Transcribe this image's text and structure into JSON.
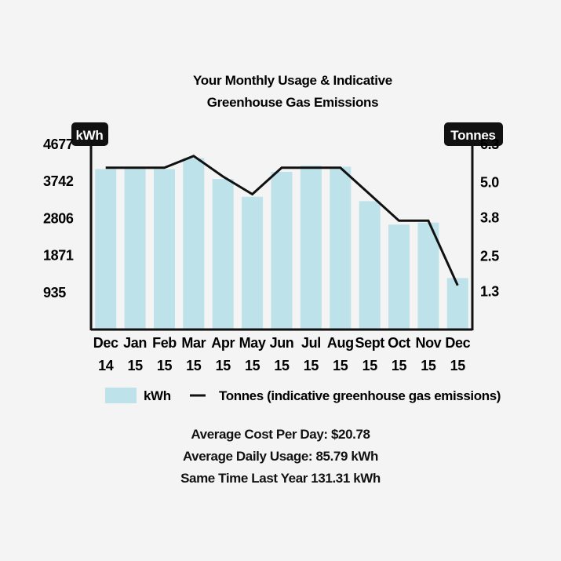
{
  "chart_data": {
    "type": "bar",
    "title": [
      "Your Monthly Usage & Indicative",
      "Greenhouse Gas Emissions"
    ],
    "categories": [
      [
        "Dec",
        "14"
      ],
      [
        "Jan",
        "15"
      ],
      [
        "Feb",
        "15"
      ],
      [
        "Mar",
        "15"
      ],
      [
        "Apr",
        "15"
      ],
      [
        "May",
        "15"
      ],
      [
        "Jun",
        "15"
      ],
      [
        "Jul",
        "15"
      ],
      [
        "Aug",
        "15"
      ],
      [
        "Sept",
        "15"
      ],
      [
        "Oct",
        "15"
      ],
      [
        "Nov",
        "15"
      ],
      [
        "Dec",
        "15"
      ]
    ],
    "y_left": {
      "label": "kWh",
      "ticks": [
        "4677",
        "3742",
        "2806",
        "1871",
        "935"
      ],
      "ylim": [
        0,
        5050
      ]
    },
    "y_right": {
      "label": "Tonnes",
      "ticks": [
        "6.3",
        "5.0",
        "3.8",
        "2.5",
        "1.3"
      ],
      "ylim": [
        0,
        6.8
      ]
    },
    "series": [
      {
        "name": "kWh",
        "kind": "bar",
        "color": "#bde2ea",
        "values": [
          4050,
          4080,
          4050,
          4330,
          3800,
          3350,
          3980,
          4140,
          4110,
          3240,
          2650,
          2700,
          1300
        ]
      },
      {
        "name": "Tonnes (indicative greenhouse gas emissions)",
        "kind": "line",
        "color": "#111111",
        "values": [
          5.5,
          5.5,
          5.5,
          5.9,
          5.2,
          4.6,
          5.5,
          5.5,
          5.5,
          4.6,
          3.7,
          3.7,
          1.5
        ]
      }
    ],
    "legend": {
      "position": "bottom"
    }
  },
  "summary": {
    "line1": "Average Cost Per Day: $20.78",
    "line2": "Average Daily Usage: 85.79 kWh",
    "line3": "Same Time Last Year 131.31 kWh"
  }
}
